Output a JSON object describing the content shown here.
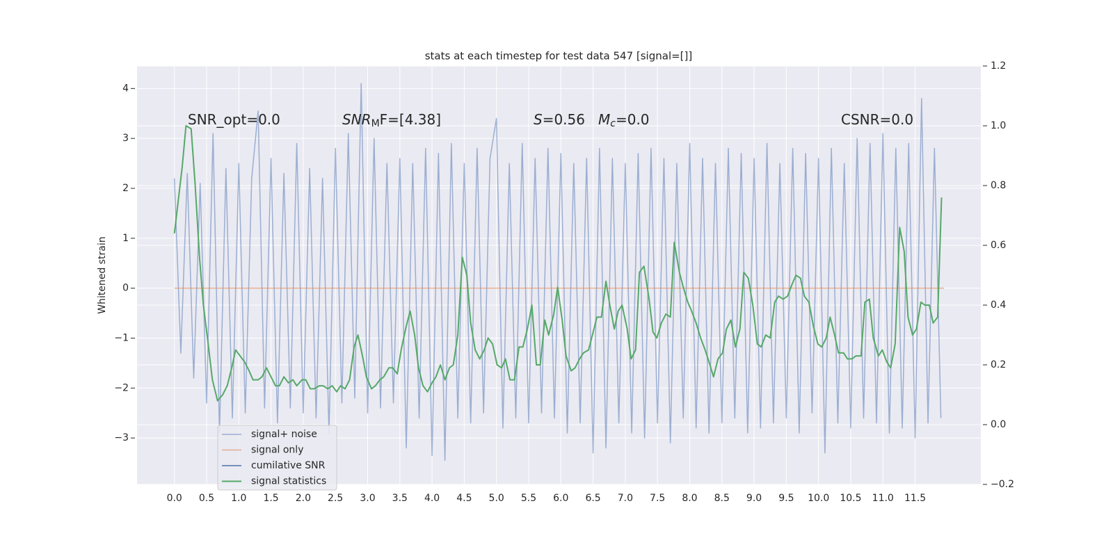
{
  "chart_data": {
    "type": "line",
    "title": "stats at each timestep for test data 547 [signal=[]]",
    "ylabel": "Whitened strain",
    "grid": true,
    "legend": "lower left",
    "xlim": [
      -0.58,
      12.52
    ],
    "ylim": [
      -3.93,
      4.45
    ],
    "y2lim": [
      -0.2,
      1.2
    ],
    "xticks": [
      {
        "value": 0,
        "label": "0.0"
      },
      0.5,
      {
        "value": 1,
        "label": "1.0"
      },
      1.5,
      {
        "value": 2,
        "label": "2.0"
      },
      2.5,
      {
        "value": 3,
        "label": "3.0"
      },
      3.5,
      {
        "value": 4,
        "label": "4.0"
      },
      4.5,
      {
        "value": 5,
        "label": "5.0"
      },
      5.5,
      {
        "value": 6,
        "label": "6.0"
      },
      6.5,
      {
        "value": 7,
        "label": "7.0"
      },
      7.5,
      {
        "value": 8,
        "label": "8.0"
      },
      8.5,
      {
        "value": 9,
        "label": "9.0"
      },
      9.5,
      {
        "value": 10,
        "label": "10.0"
      },
      10.5,
      {
        "value": 11,
        "label": "11.0"
      },
      11.5
    ],
    "yticks": [
      {
        "value": -3,
        "label": "−3"
      },
      {
        "value": -2,
        "label": "−2"
      },
      {
        "value": -1,
        "label": "−1"
      },
      0,
      1,
      2,
      3,
      4
    ],
    "y2ticks": [
      {
        "value": -0.2,
        "label": "−0.2"
      },
      {
        "value": 0,
        "label": "0.0"
      },
      0.2,
      0.4,
      0.6,
      0.8,
      {
        "value": 1,
        "label": "1.0"
      },
      1.2
    ],
    "annotations": [
      {
        "parts": [
          "SNR_opt=0.0"
        ]
      },
      {
        "parts": [
          "SNR",
          "M",
          "F=[4.38]"
        ]
      },
      {
        "parts": [
          "S",
          "=0.56"
        ]
      },
      {
        "parts": [
          "M",
          "c",
          "=0.0"
        ]
      },
      {
        "parts": [
          "CSNR=0.0"
        ]
      }
    ],
    "series": [
      {
        "name": "signal+ noise",
        "color": "#4c72b0",
        "x": [
          0,
          0.1,
          0.2,
          0.3,
          0.4,
          0.5,
          0.6,
          0.7,
          0.8,
          0.9,
          1,
          1.1,
          1.2,
          1.3,
          1.4,
          1.5,
          1.6,
          1.7,
          1.8,
          1.9,
          2,
          2.1,
          2.2,
          2.3,
          2.4,
          2.5,
          2.6,
          2.7,
          2.8,
          2.9,
          3,
          3.1,
          3.2,
          3.3,
          3.4,
          3.5,
          3.6,
          3.7,
          3.8,
          3.9,
          4,
          4.1,
          4.2,
          4.3,
          4.4,
          4.5,
          4.6,
          4.7,
          4.8,
          4.9,
          5,
          5.1,
          5.2,
          5.3,
          5.4,
          5.5,
          5.6,
          5.7,
          5.8,
          5.9,
          6,
          6.1,
          6.2,
          6.3,
          6.4,
          6.5,
          6.6,
          6.7,
          6.8,
          6.9,
          7,
          7.1,
          7.2,
          7.3,
          7.4,
          7.5,
          7.6,
          7.7,
          7.8,
          7.9,
          8,
          8.1,
          8.2,
          8.3,
          8.4,
          8.5,
          8.6,
          8.7,
          8.8,
          8.9,
          9,
          9.1,
          9.2,
          9.3,
          9.4,
          9.5,
          9.6,
          9.7,
          9.8,
          9.9,
          10,
          10.1,
          10.2,
          10.3,
          10.4,
          10.5,
          10.6,
          10.7,
          10.8,
          10.9,
          11,
          11.1,
          11.2,
          11.3,
          11.4,
          11.5,
          11.6,
          11.7,
          11.8,
          11.9
        ],
        "values": [
          2.2,
          -1.3,
          2.3,
          -1.8,
          2.1,
          -2.3,
          3.1,
          -2.9,
          2.4,
          -2.6,
          2.5,
          -2.5,
          2.2,
          3.55,
          -2.4,
          2.6,
          -2.7,
          2.3,
          -2.4,
          2.9,
          -2.5,
          2.4,
          -2.6,
          2.2,
          -2.9,
          2.8,
          -2.3,
          3.1,
          -2.2,
          4.1,
          -2.5,
          3.0,
          -2.4,
          2.5,
          -2.3,
          2.6,
          -3.2,
          2.5,
          -2.6,
          2.8,
          -3.35,
          2.7,
          -3.45,
          2.9,
          -2.6,
          2.5,
          -2.7,
          2.8,
          -2.5,
          2.6,
          3.4,
          -2.8,
          2.5,
          -2.6,
          2.9,
          -2.7,
          2.6,
          -2.5,
          2.8,
          -2.6,
          2.7,
          -2.9,
          2.5,
          -2.7,
          2.6,
          -3.3,
          2.8,
          -3.2,
          2.6,
          -2.7,
          2.5,
          -2.9,
          2.7,
          -3.0,
          2.8,
          -2.7,
          2.6,
          -3.1,
          2.5,
          -2.6,
          2.9,
          -2.8,
          2.6,
          -2.9,
          2.5,
          -2.7,
          2.8,
          -2.6,
          2.7,
          -2.9,
          2.6,
          -2.8,
          2.9,
          -2.7,
          2.5,
          -2.6,
          2.8,
          -2.9,
          2.7,
          -2.5,
          2.6,
          -3.3,
          2.8,
          -2.7,
          2.5,
          -2.8,
          3.0,
          -2.6,
          2.9,
          -2.7,
          3.1,
          -2.9,
          2.8,
          -2.8,
          2.9,
          -3.0,
          3.8,
          -2.7,
          2.8,
          -2.6
        ]
      },
      {
        "name": "signal only",
        "color": "#dd8452",
        "x": [
          0,
          11.95
        ],
        "values": [
          0,
          0
        ]
      },
      {
        "name": "cumilative SNR",
        "color": "#4c72b0",
        "axis": "y2",
        "x": [],
        "values": []
      },
      {
        "name": "signal statistics",
        "color": "#55a868",
        "axis": "y2",
        "x": [
          0,
          0.12,
          0.18,
          0.26,
          0.32,
          0.39,
          0.45,
          0.53,
          0.59,
          0.67,
          0.75,
          0.82,
          0.89,
          0.95,
          1.02,
          1.09,
          1.16,
          1.22,
          1.3,
          1.36,
          1.43,
          1.5,
          1.57,
          1.63,
          1.7,
          1.77,
          1.84,
          1.9,
          1.98,
          2.04,
          2.11,
          2.17,
          2.25,
          2.31,
          2.38,
          2.45,
          2.52,
          2.58,
          2.65,
          2.72,
          2.79,
          2.85,
          2.92,
          2.98,
          3.06,
          3.12,
          3.19,
          3.25,
          3.33,
          3.39,
          3.46,
          3.52,
          3.6,
          3.66,
          3.73,
          3.79,
          3.86,
          3.93,
          4,
          4.06,
          4.13,
          4.2,
          4.27,
          4.33,
          4.4,
          4.47,
          4.54,
          4.6,
          4.67,
          4.74,
          4.81,
          4.87,
          4.94,
          5.01,
          5.08,
          5.14,
          5.21,
          5.28,
          5.35,
          5.41,
          5.48,
          5.55,
          5.62,
          5.68,
          5.75,
          5.81,
          5.89,
          5.95,
          6.02,
          6.08,
          6.16,
          6.22,
          6.29,
          6.35,
          6.43,
          6.49,
          6.56,
          6.63,
          6.7,
          6.76,
          6.83,
          6.89,
          6.95,
          7.03,
          7.09,
          7.16,
          7.22,
          7.29,
          7.37,
          7.43,
          7.49,
          7.56,
          7.63,
          7.7,
          7.76,
          7.84,
          7.9,
          7.97,
          8.03,
          8.1,
          8.17,
          8.24,
          8.3,
          8.37,
          8.44,
          8.51,
          8.57,
          8.64,
          8.71,
          8.78,
          8.84,
          8.91,
          8.98,
          9.05,
          9.11,
          9.18,
          9.25,
          9.32,
          9.38,
          9.45,
          9.52,
          9.59,
          9.65,
          9.72,
          9.78,
          9.85,
          9.92,
          9.99,
          10.05,
          10.12,
          10.18,
          10.25,
          10.31,
          10.39,
          10.45,
          10.52,
          10.58,
          10.66,
          10.72,
          10.79,
          10.85,
          10.93,
          10.99,
          11.06,
          11.12,
          11.19,
          11.26,
          11.33,
          11.39,
          11.46,
          11.52,
          11.59,
          11.65,
          11.72,
          11.78,
          11.85,
          11.91
        ],
        "values": [
          0.64,
          0.86,
          1.0,
          0.99,
          0.81,
          0.56,
          0.4,
          0.26,
          0.15,
          0.08,
          0.1,
          0.13,
          0.19,
          0.25,
          0.23,
          0.21,
          0.18,
          0.15,
          0.15,
          0.16,
          0.19,
          0.16,
          0.13,
          0.13,
          0.16,
          0.14,
          0.15,
          0.13,
          0.15,
          0.15,
          0.12,
          0.12,
          0.13,
          0.13,
          0.12,
          0.13,
          0.11,
          0.13,
          0.12,
          0.15,
          0.26,
          0.3,
          0.23,
          0.16,
          0.12,
          0.13,
          0.15,
          0.16,
          0.19,
          0.19,
          0.17,
          0.25,
          0.33,
          0.38,
          0.3,
          0.19,
          0.13,
          0.11,
          0.14,
          0.16,
          0.2,
          0.15,
          0.19,
          0.2,
          0.3,
          0.56,
          0.5,
          0.34,
          0.25,
          0.22,
          0.25,
          0.29,
          0.27,
          0.2,
          0.19,
          0.22,
          0.15,
          0.15,
          0.26,
          0.26,
          0.32,
          0.4,
          0.2,
          0.2,
          0.35,
          0.3,
          0.37,
          0.46,
          0.35,
          0.23,
          0.18,
          0.19,
          0.22,
          0.24,
          0.25,
          0.3,
          0.36,
          0.36,
          0.48,
          0.4,
          0.32,
          0.38,
          0.4,
          0.32,
          0.22,
          0.25,
          0.51,
          0.53,
          0.42,
          0.31,
          0.29,
          0.34,
          0.37,
          0.36,
          0.61,
          0.51,
          0.46,
          0.41,
          0.38,
          0.34,
          0.29,
          0.25,
          0.21,
          0.16,
          0.22,
          0.24,
          0.32,
          0.35,
          0.26,
          0.32,
          0.51,
          0.49,
          0.4,
          0.27,
          0.26,
          0.3,
          0.29,
          0.41,
          0.43,
          0.42,
          0.43,
          0.47,
          0.5,
          0.49,
          0.43,
          0.41,
          0.33,
          0.27,
          0.26,
          0.29,
          0.36,
          0.3,
          0.24,
          0.24,
          0.22,
          0.22,
          0.23,
          0.23,
          0.41,
          0.42,
          0.29,
          0.23,
          0.25,
          0.21,
          0.19,
          0.27,
          0.66,
          0.58,
          0.36,
          0.3,
          0.32,
          0.41,
          0.4,
          0.4,
          0.34,
          0.36,
          0.76
        ]
      }
    ]
  }
}
